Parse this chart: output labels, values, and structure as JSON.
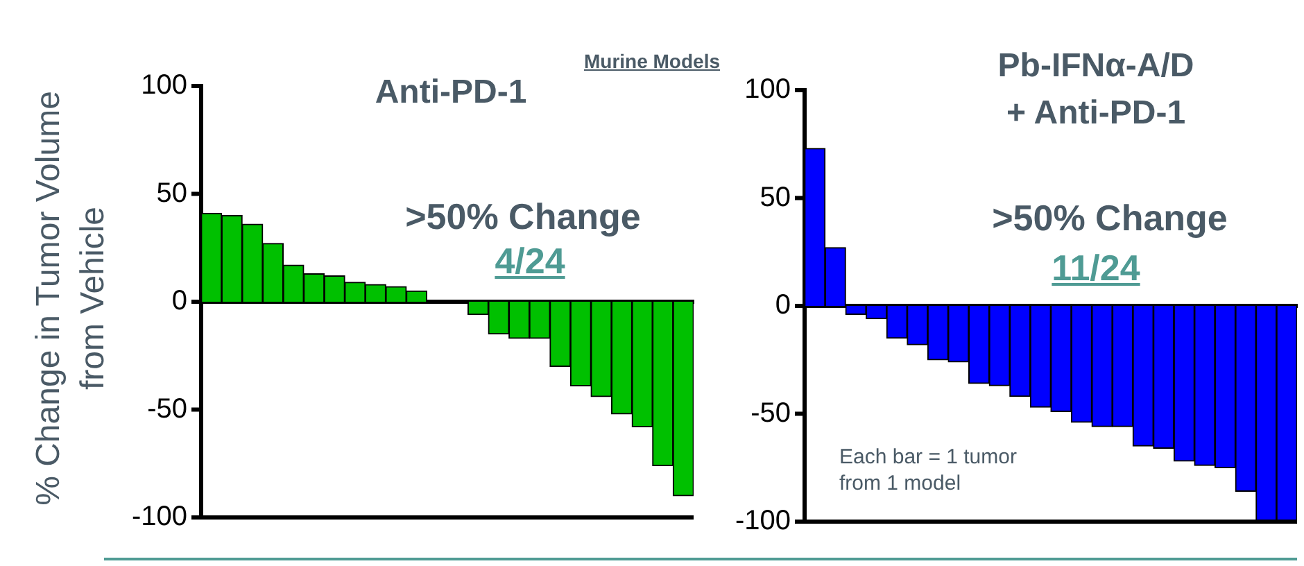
{
  "chart_data": [
    {
      "type": "bar",
      "title": "Anti-PD-1",
      "ylabel": "% Change in Tumor Volume\nfrom Vehicle",
      "annotations": [
        "Murine Models",
        ">50% Change",
        "4/24"
      ],
      "categories": [
        null,
        null,
        null,
        null,
        null,
        null,
        null,
        null,
        null,
        null,
        null,
        null,
        null,
        null,
        null,
        null,
        null,
        null,
        null,
        null,
        null,
        null,
        null,
        null
      ],
      "values": [
        41,
        40,
        36,
        27,
        17,
        13,
        12,
        9,
        8,
        7,
        5,
        0,
        0,
        -6,
        -15,
        -17,
        -17,
        -30,
        -39,
        -44,
        -52,
        -58,
        -76,
        -90
      ],
      "color": "#00c000",
      "ylim": [
        -100,
        100
      ],
      "yticks": [
        -100,
        -50,
        0,
        50,
        100
      ]
    },
    {
      "type": "bar",
      "title": "Pb-IFNα-A/D\n+ Anti-PD-1",
      "annotations": [
        ">50% Change",
        "11/24",
        "Each bar = 1 tumor\nfrom 1 model"
      ],
      "categories": [
        null,
        null,
        null,
        null,
        null,
        null,
        null,
        null,
        null,
        null,
        null,
        null,
        null,
        null,
        null,
        null,
        null,
        null,
        null,
        null,
        null,
        null,
        null,
        null
      ],
      "values": [
        73,
        27,
        -4,
        -6,
        -15,
        -18,
        -25,
        -26,
        -36,
        -37,
        -42,
        -47,
        -49,
        -54,
        -56,
        -56,
        -65,
        -66,
        -72,
        -74,
        -75,
        -86,
        -100,
        -100
      ],
      "color": "#0000ff",
      "ylim": [
        -100,
        100
      ],
      "yticks": [
        -100,
        -50,
        0,
        50,
        100
      ]
    }
  ]
}
